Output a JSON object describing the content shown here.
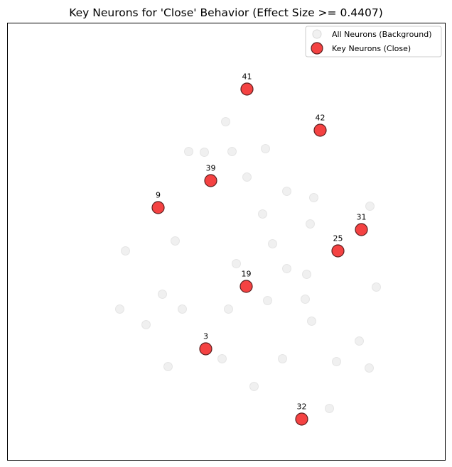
{
  "chart_data": {
    "type": "scatter",
    "title": "Key Neurons for 'Close' Behavior (Effect Size >= 0.4407)",
    "xlabel": "",
    "ylabel": "",
    "xlim": [
      10,
      626
    ],
    "ylim": [
      648,
      32
    ],
    "grid": false,
    "legend_position": "top-right",
    "colors": {
      "background_point": "#e6e6e6",
      "background_edge": "#d9d9d9",
      "key_point": "#f44242",
      "key_edge": "#5a1f1f"
    },
    "series": [
      {
        "name": "All Neurons (Background)",
        "points": [
          {
            "x": 317,
            "y": 171
          },
          {
            "x": 265,
            "y": 213
          },
          {
            "x": 287,
            "y": 214
          },
          {
            "x": 326,
            "y": 213
          },
          {
            "x": 373,
            "y": 209
          },
          {
            "x": 347,
            "y": 249
          },
          {
            "x": 403,
            "y": 269
          },
          {
            "x": 441,
            "y": 278
          },
          {
            "x": 520,
            "y": 290
          },
          {
            "x": 369,
            "y": 301
          },
          {
            "x": 436,
            "y": 315
          },
          {
            "x": 246,
            "y": 339
          },
          {
            "x": 383,
            "y": 343
          },
          {
            "x": 176,
            "y": 353
          },
          {
            "x": 332,
            "y": 371
          },
          {
            "x": 403,
            "y": 378
          },
          {
            "x": 431,
            "y": 386
          },
          {
            "x": 529,
            "y": 404
          },
          {
            "x": 228,
            "y": 414
          },
          {
            "x": 376,
            "y": 423
          },
          {
            "x": 429,
            "y": 421
          },
          {
            "x": 168,
            "y": 435
          },
          {
            "x": 256,
            "y": 435
          },
          {
            "x": 321,
            "y": 435
          },
          {
            "x": 438,
            "y": 452
          },
          {
            "x": 205,
            "y": 457
          },
          {
            "x": 505,
            "y": 480
          },
          {
            "x": 312,
            "y": 505
          },
          {
            "x": 397,
            "y": 505
          },
          {
            "x": 473,
            "y": 509
          },
          {
            "x": 236,
            "y": 516
          },
          {
            "x": 519,
            "y": 518
          },
          {
            "x": 357,
            "y": 544
          },
          {
            "x": 463,
            "y": 575
          }
        ]
      },
      {
        "name": "Key Neurons (Close)",
        "points": [
          {
            "label": "41",
            "x": 347,
            "y": 125
          },
          {
            "label": "42",
            "x": 450,
            "y": 183
          },
          {
            "label": "39",
            "x": 296,
            "y": 254
          },
          {
            "label": "9",
            "x": 222,
            "y": 292
          },
          {
            "label": "31",
            "x": 508,
            "y": 323
          },
          {
            "label": "25",
            "x": 475,
            "y": 353
          },
          {
            "label": "19",
            "x": 346,
            "y": 403
          },
          {
            "label": "3",
            "x": 289,
            "y": 491
          },
          {
            "label": "32",
            "x": 424,
            "y": 590
          }
        ]
      }
    ]
  }
}
